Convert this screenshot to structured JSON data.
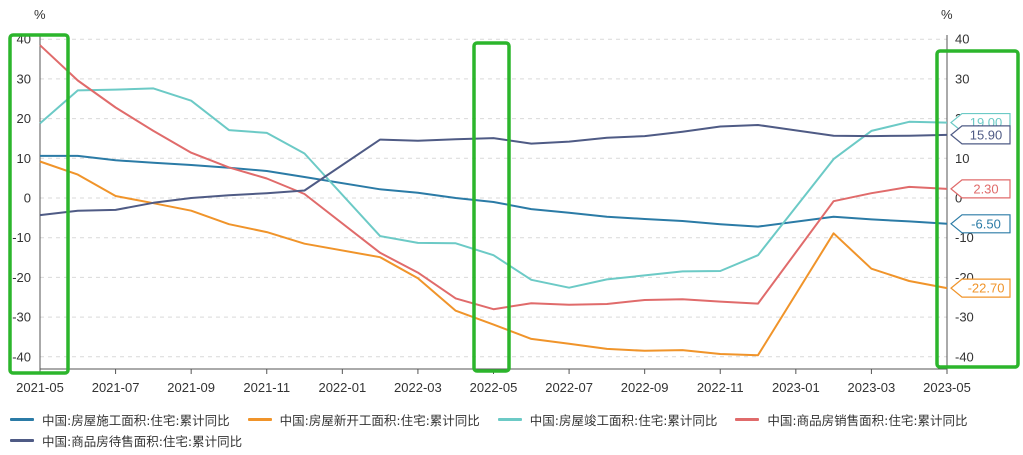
{
  "chart_data": {
    "type": "line",
    "y_unit_left": "%",
    "y_unit_right": "%",
    "ylim": [
      -45,
      45
    ],
    "y_ticks": [
      -40,
      -30,
      -20,
      -10,
      0,
      10,
      20,
      30,
      40
    ],
    "x_tick_labels": [
      "2021-05",
      "2021-07",
      "2021-09",
      "2021-11",
      "2022-01",
      "2022-03",
      "2022-05",
      "2022-07",
      "2022-09",
      "2022-11",
      "2023-01",
      "2023-03",
      "2023-05"
    ],
    "x": [
      "2021-05",
      "2021-06",
      "2021-07",
      "2021-08",
      "2021-09",
      "2021-10",
      "2021-11",
      "2021-12",
      "2022-02",
      "2022-03",
      "2022-04",
      "2022-05",
      "2022-06",
      "2022-07",
      "2022-08",
      "2022-09",
      "2022-10",
      "2022-11",
      "2022-12",
      "2023-02",
      "2023-03",
      "2023-04",
      "2023-05"
    ],
    "grid": "horizontal-dashed",
    "legend_position": "bottom",
    "series": [
      {
        "name": "中国:房屋施工面积:住宅:累计同比",
        "color": "#2b7ba6",
        "values": [
          10.6,
          10.6,
          9.5,
          8.9,
          8.3,
          7.6,
          6.8,
          5.3,
          2.2,
          1.3,
          0,
          -1,
          -2.8,
          -3.7,
          -4.7,
          -5.3,
          -5.8,
          -6.6,
          -7.2,
          -4.7,
          -5.4,
          -5.9,
          -6.5
        ],
        "end_label": "-6.50"
      },
      {
        "name": "中国:房屋新开工面积:住宅:累计同比",
        "color": "#f0942a",
        "values": [
          9.2,
          5.9,
          0.5,
          -1.3,
          -3.2,
          -6.6,
          -8.6,
          -11.5,
          -14.9,
          -20.2,
          -28.4,
          -31.9,
          -35.5,
          -36.7,
          -38.0,
          -38.5,
          -38.3,
          -39.3,
          -39.6,
          -8.9,
          -17.8,
          -20.9,
          -22.7
        ],
        "end_label": "-22.70"
      },
      {
        "name": "中国:房屋竣工面积:住宅:累计同比",
        "color": "#6ccac6",
        "values": [
          18.8,
          27.1,
          27.3,
          27.6,
          24.5,
          17.1,
          16.4,
          11.2,
          -9.6,
          -11.3,
          -11.4,
          -14.4,
          -20.6,
          -22.6,
          -20.5,
          -19.5,
          -18.5,
          -18.4,
          -14.4,
          9.8,
          16.9,
          19.2,
          19.0
        ],
        "end_label": "19.00"
      },
      {
        "name": "中国:商品房销售面积:住宅:累计同比",
        "color": "#e06b6b",
        "values": [
          38.5,
          29.6,
          22.8,
          16.9,
          11.4,
          7.7,
          4.9,
          1.0,
          -13.8,
          -18.8,
          -25.3,
          -28.0,
          -26.5,
          -26.9,
          -26.7,
          -25.7,
          -25.5,
          -26.1,
          -26.6,
          -0.8,
          1.2,
          2.8,
          2.3
        ],
        "end_label": "2.30"
      },
      {
        "name": "中国:商品房待售面积:住宅:累计同比",
        "color": "#4f5b85",
        "values": [
          -4.3,
          -3.2,
          -3.0,
          -1.2,
          0,
          0.7,
          1.2,
          1.9,
          14.7,
          14.4,
          14.8,
          15.1,
          13.7,
          14.2,
          15.2,
          15.6,
          16.7,
          18.0,
          18.4,
          15.7,
          15.6,
          15.7,
          15.9
        ],
        "end_label": "15.90"
      }
    ]
  }
}
